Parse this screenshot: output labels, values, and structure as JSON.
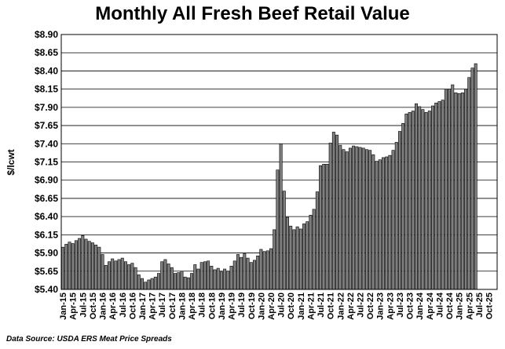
{
  "chart_data": {
    "type": "bar",
    "title": "Monthly All Fresh Beef Retail Value",
    "ylabel": "$/lcwt",
    "xlabel": "",
    "ylim": [
      5.4,
      8.9
    ],
    "yticks": [
      "$5.40",
      "$5.65",
      "$5.90",
      "$6.15",
      "$6.40",
      "$6.65",
      "$6.90",
      "$7.15",
      "$7.40",
      "$7.65",
      "$7.90",
      "$8.15",
      "$8.40",
      "$8.65",
      "$8.90"
    ],
    "xticks": [
      "Jan-15",
      "Apr-15",
      "Jul-15",
      "Oct-15",
      "Jan-16",
      "Apr-16",
      "Jul-16",
      "Oct-16",
      "Jan-17",
      "Apr-17",
      "Jul-17",
      "Oct-17",
      "Jan-18",
      "Apr-18",
      "Jul-18",
      "Oct-18",
      "Jan-19",
      "Apr-19",
      "Jul-19",
      "Oct-19",
      "Jan-20",
      "Apr-20",
      "Jul-20",
      "Oct-20",
      "Jan-21",
      "Apr-21",
      "Jul-21",
      "Oct-21",
      "Jan-22",
      "Apr-22",
      "Jul-22",
      "Oct-22",
      "Jan-23",
      "Apr-23",
      "Jul-23",
      "Oct-23",
      "Jan-24",
      "Apr-24",
      "Jul-24",
      "Oct-24",
      "Jan-25",
      "Apr-25",
      "Jul-25",
      "Oct-25"
    ],
    "grid": true,
    "bar_color": "#7f7f7f",
    "values": [
      5.98,
      6.02,
      6.05,
      6.03,
      6.07,
      6.1,
      6.14,
      6.09,
      6.06,
      6.04,
      6.01,
      5.98,
      5.88,
      5.73,
      5.78,
      5.82,
      5.79,
      5.81,
      5.83,
      5.78,
      5.74,
      5.76,
      5.7,
      5.6,
      5.55,
      5.5,
      5.53,
      5.55,
      5.57,
      5.62,
      5.78,
      5.81,
      5.75,
      5.7,
      5.62,
      5.63,
      5.65,
      5.57,
      5.56,
      5.62,
      5.74,
      5.68,
      5.77,
      5.78,
      5.79,
      5.72,
      5.67,
      5.69,
      5.64,
      5.68,
      5.65,
      5.72,
      5.79,
      5.88,
      5.84,
      5.89,
      5.83,
      5.77,
      5.8,
      5.86,
      5.95,
      5.92,
      5.93,
      5.96,
      6.22,
      7.04,
      7.4,
      6.75,
      6.39,
      6.27,
      6.22,
      6.26,
      6.23,
      6.3,
      6.33,
      6.42,
      6.5,
      6.74,
      7.1,
      7.12,
      7.12,
      7.41,
      7.56,
      7.52,
      7.38,
      7.32,
      7.29,
      7.34,
      7.37,
      7.36,
      7.35,
      7.34,
      7.32,
      7.31,
      7.25,
      7.16,
      7.18,
      7.21,
      7.22,
      7.24,
      7.31,
      7.42,
      7.57,
      7.68,
      7.81,
      7.83,
      7.85,
      7.95,
      7.91,
      7.87,
      7.83,
      7.85,
      7.92,
      7.96,
      7.98,
      8.0,
      8.15,
      8.15,
      8.21,
      8.1,
      8.09,
      8.1,
      8.15,
      8.31,
      8.44,
      8.5
    ]
  },
  "source_note": "Data Source: USDA ERS Meat Price Spreads"
}
